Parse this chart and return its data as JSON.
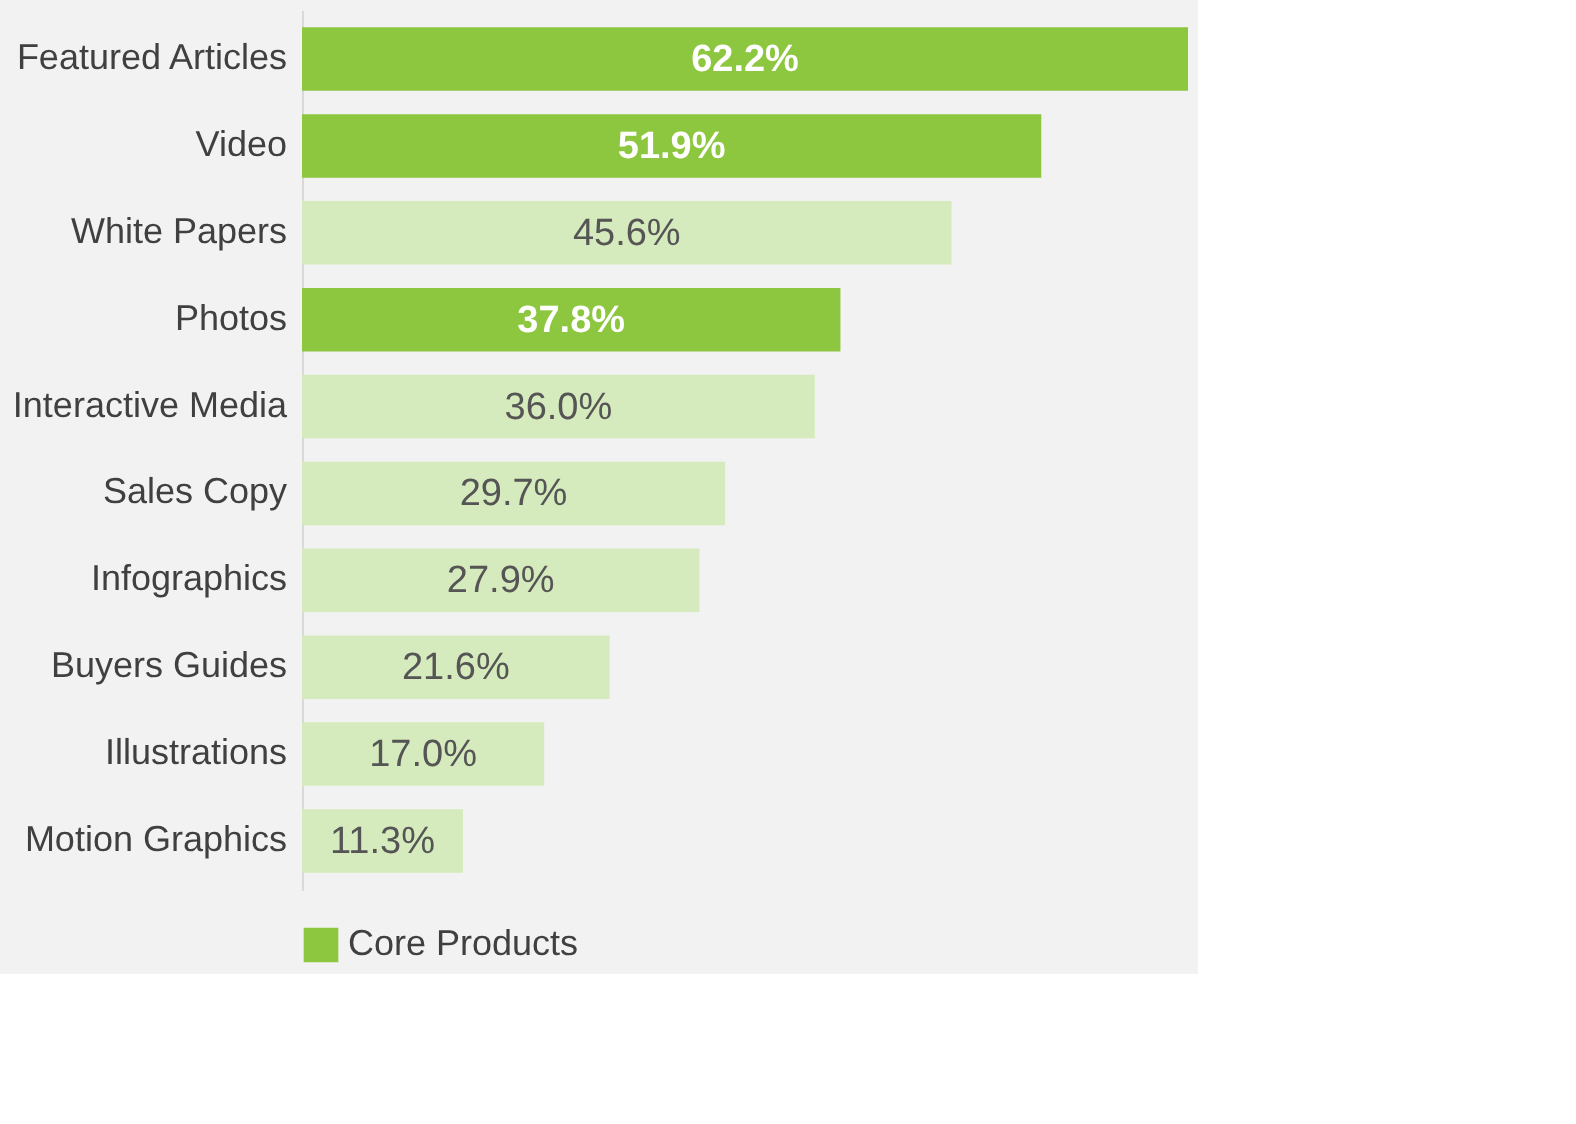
{
  "chart_data": {
    "type": "bar",
    "orientation": "horizontal",
    "legend": "bottom",
    "categories": [
      "Featured Articles",
      "Video",
      "White Papers",
      "Photos",
      "Interactive Media",
      "Sales Copy",
      "Infographics",
      "Buyers Guides",
      "Illustrations",
      "Motion Graphics"
    ],
    "series": [
      {
        "name": "Core Products",
        "color": "#8dc63f",
        "values": [
          62.2,
          51.9,
          null,
          37.8,
          null,
          null,
          null,
          null,
          null,
          null
        ],
        "value_labels": [
          "62.2%",
          "51.9%",
          null,
          "37.8%",
          null,
          null,
          null,
          null,
          null,
          null
        ]
      },
      {
        "color": "#d6ebbd",
        "values": [
          null,
          null,
          45.6,
          null,
          36.0,
          29.7,
          27.9,
          21.6,
          17.0,
          11.3
        ],
        "value_labels": [
          null,
          null,
          "45.6%",
          null,
          "36.0%",
          "29.7%",
          "27.9%",
          "21.6%",
          "17.0%",
          "11.3%"
        ]
      }
    ]
  }
}
